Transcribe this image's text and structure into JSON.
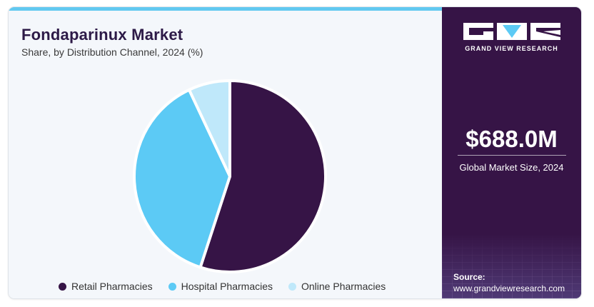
{
  "chart_data": {
    "type": "pie",
    "title": "Fondaparinux Market",
    "subtitle": "Share, by Distribution Channel, 2024 (%)",
    "categories": [
      "Retail Pharmacies",
      "Hospital Pharmacies",
      "Online Pharmacies"
    ],
    "values": [
      55,
      38,
      7
    ],
    "colors": [
      "#361446",
      "#5ccaf5",
      "#bfe8fa"
    ],
    "legend_position": "bottom"
  },
  "sidebar": {
    "brand": "GRAND VIEW RESEARCH",
    "market_size": "$688.0M",
    "market_size_label": "Global Market Size, 2024",
    "source_label": "Source:",
    "source_url": "www.grandviewresearch.com"
  },
  "colors": {
    "accent": "#62c9f0",
    "panel": "#361446",
    "background": "#f4f7fb"
  }
}
